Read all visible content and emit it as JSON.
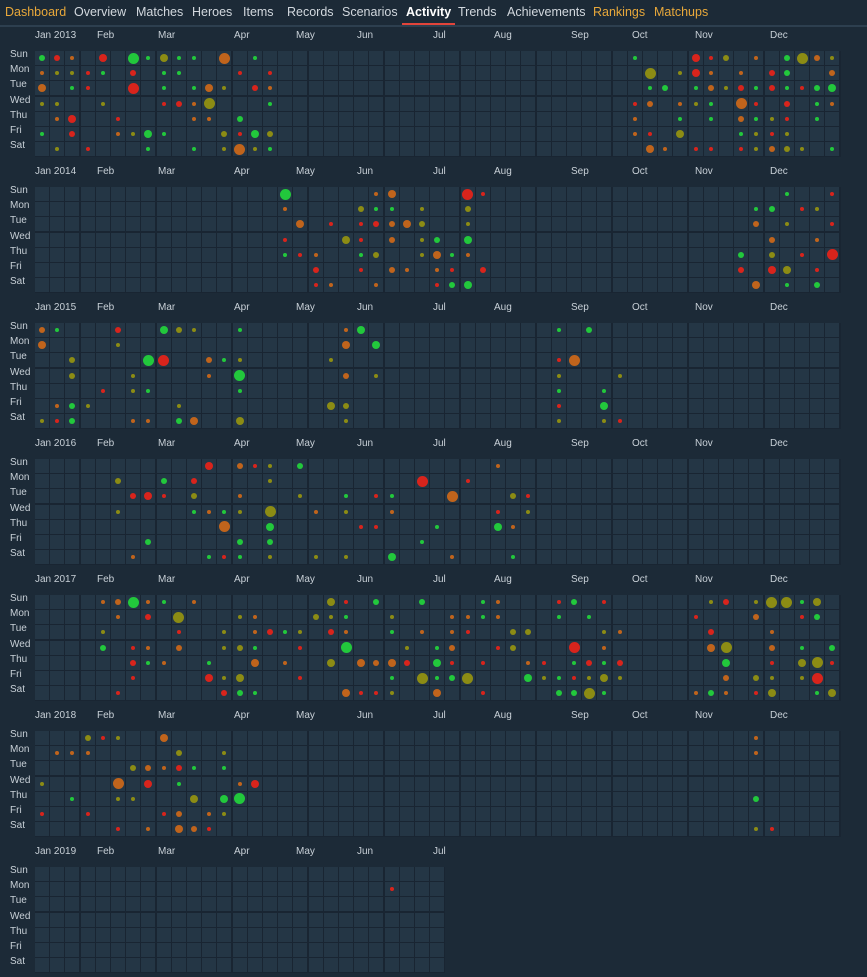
{
  "nav": {
    "tabs": [
      {
        "label": "Dashboard",
        "style": "gold"
      },
      {
        "label": "Overview",
        "style": "normal"
      },
      {
        "label": "Matches",
        "style": "normal"
      },
      {
        "label": "Heroes",
        "style": "normal"
      },
      {
        "label": "Items",
        "style": "normal"
      },
      {
        "label": "Records",
        "style": "normal"
      },
      {
        "label": "Scenarios",
        "style": "normal"
      },
      {
        "label": "Activity",
        "style": "active"
      },
      {
        "label": "Trends",
        "style": "normal"
      },
      {
        "label": "Achievements",
        "style": "normal"
      },
      {
        "label": "Rankings",
        "style": "gold"
      },
      {
        "label": "Matchups",
        "style": "gold"
      }
    ]
  },
  "days": [
    "Sun",
    "Mon",
    "Tue",
    "Wed",
    "Thu",
    "Fri",
    "Sat"
  ],
  "colors": {
    "win": "#22c83c",
    "loss": "#d8241c",
    "mixed_warm": "#c0641c",
    "mixed": "#8c8c14"
  },
  "years": [
    {
      "months": [
        "Jan 2013",
        "Feb",
        "Mar",
        "Apr",
        "May",
        "Jun",
        "Jul",
        "Aug",
        "Sep",
        "Oct",
        "Nov",
        "Dec"
      ],
      "weeks": 53,
      "density": 0.55,
      "active_weeks": [
        [
          0,
          15
        ],
        [
          39,
          52
        ]
      ]
    },
    {
      "months": [
        "Jan 2014",
        "Feb",
        "Mar",
        "Apr",
        "May",
        "Jun",
        "Jul",
        "Aug",
        "Sep",
        "Oct",
        "Nov",
        "Dec"
      ],
      "weeks": 53,
      "density": 0.45,
      "active_weeks": [
        [
          16,
          29
        ],
        [
          46,
          52
        ]
      ]
    },
    {
      "months": [
        "Jan 2015",
        "Feb",
        "Mar",
        "Apr",
        "May",
        "Jun",
        "Jul",
        "Aug",
        "Sep",
        "Oct",
        "Nov",
        "Dec"
      ],
      "weeks": 53,
      "density": 0.3,
      "active_weeks": [
        [
          0,
          13
        ],
        [
          19,
          22
        ],
        [
          34,
          38
        ]
      ]
    },
    {
      "months": [
        "Jan 2016",
        "Feb",
        "Mar",
        "Apr",
        "May",
        "Jun",
        "Jul",
        "Aug",
        "Sep",
        "Oct",
        "Nov",
        "Dec"
      ],
      "weeks": 53,
      "density": 0.3,
      "active_weeks": [
        [
          5,
          15
        ],
        [
          17,
          32
        ]
      ]
    },
    {
      "months": [
        "Jan 2017",
        "Feb",
        "Mar",
        "Apr",
        "May",
        "Jun",
        "Jul",
        "Aug",
        "Sep",
        "Oct",
        "Nov",
        "Dec"
      ],
      "weeks": 53,
      "density": 0.45,
      "active_weeks": [
        [
          4,
          38
        ],
        [
          43,
          52
        ]
      ]
    },
    {
      "months": [
        "Jan 2018",
        "Feb",
        "Mar",
        "Apr",
        "May",
        "Jun",
        "Jul",
        "Aug",
        "Sep",
        "Oct",
        "Nov",
        "Dec"
      ],
      "weeks": 53,
      "density": 0.4,
      "active_weeks": [
        [
          0,
          14
        ],
        [
          47,
          48
        ]
      ]
    },
    {
      "months": [
        "Jan 2019",
        "Feb",
        "Mar",
        "Apr",
        "May",
        "Jun",
        "Jul"
      ],
      "weeks": 27,
      "density": 0.0,
      "active_weeks": []
    }
  ]
}
